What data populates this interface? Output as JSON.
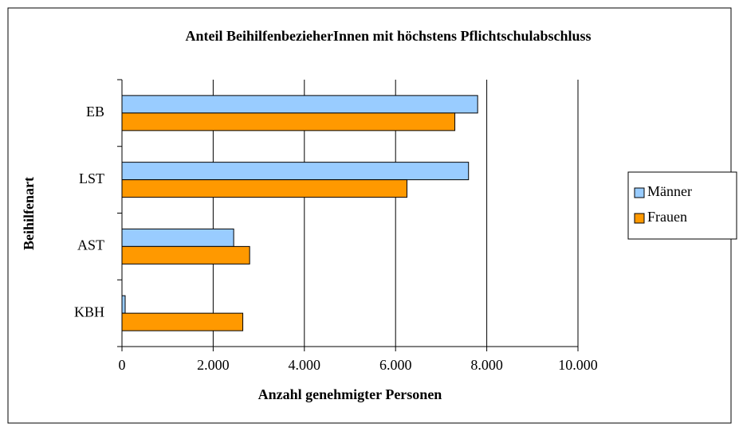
{
  "chart_data": {
    "type": "hbar",
    "title": "Anteil BeihilfenbezieherInnen mit höchstens Pflichtschulabschluss",
    "x_label": "Anzahl genehmigter Personen",
    "y_label": "Beihilfenart",
    "categories": [
      "EB",
      "LST",
      "AST",
      "KBH"
    ],
    "series": [
      {
        "name": "Männer",
        "color": "#99ccff",
        "values": [
          7800,
          7600,
          2450,
          70
        ]
      },
      {
        "name": "Frauen",
        "color": "#ff9900",
        "values": [
          7300,
          6250,
          2800,
          2650
        ]
      }
    ],
    "xlim": [
      0,
      10000
    ],
    "xticks": [
      0,
      {
        "value": 2000,
        "label": "2.000"
      },
      {
        "value": 4000,
        "label": "4.000"
      },
      {
        "value": 6000,
        "label": "6.000"
      },
      {
        "value": 8000,
        "label": "8.000"
      },
      {
        "value": 10000,
        "label": "10.000"
      }
    ],
    "grid": true,
    "legend": "right"
  }
}
